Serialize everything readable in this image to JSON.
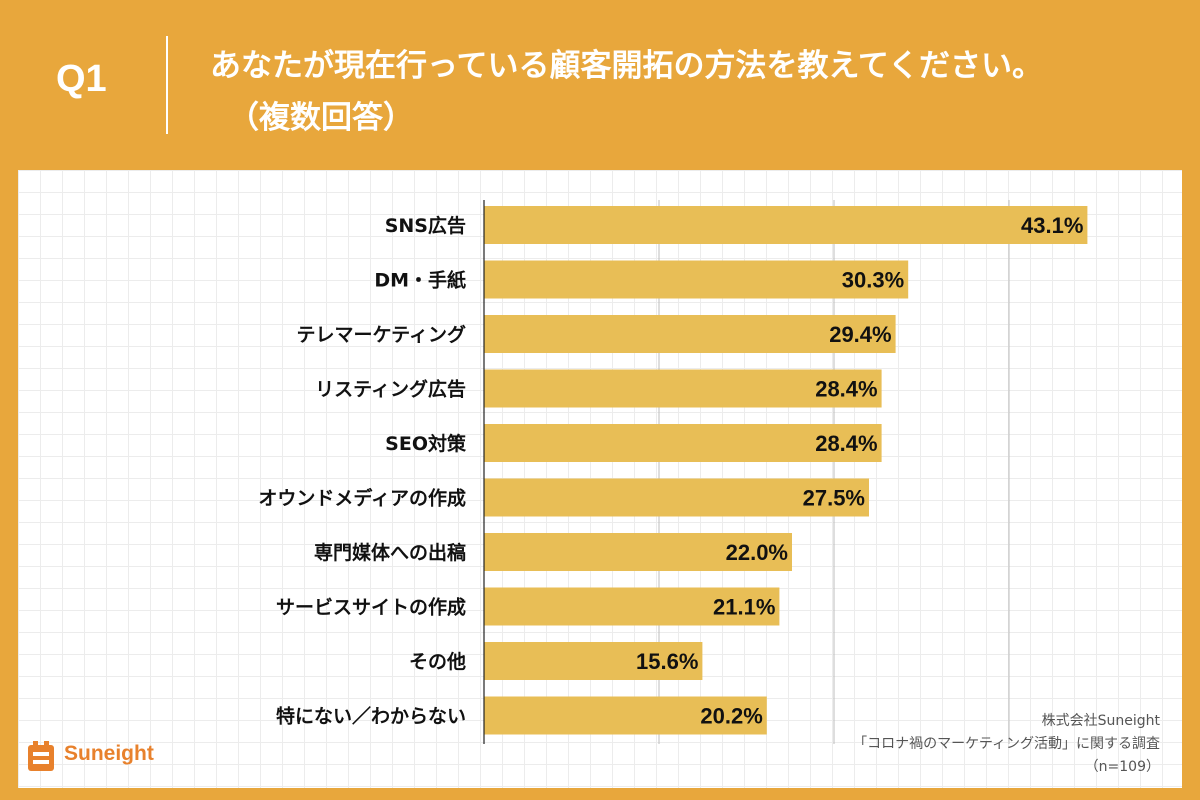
{
  "header": {
    "question_number": "Q1",
    "title_line1": "あなたが現在行っている顧客開拓の方法を教えてください。",
    "title_line2": "（複数回答）"
  },
  "colors": {
    "background": "#E8A73C",
    "bar": "#E8BE56",
    "grid": "#bdbdbd",
    "logo": "#E8812C"
  },
  "chart_data": {
    "type": "bar",
    "orientation": "horizontal",
    "title": "あなたが現在行っている顧客開拓の方法を教えてください。（複数回答）",
    "categories": [
      "SNS広告",
      "DM・手紙",
      "テレマーケティング",
      "リスティング広告",
      "SEO対策",
      "オウンドメディアの作成",
      "専門媒体への出稿",
      "サービスサイトの作成",
      "その他",
      "特にない／わからない"
    ],
    "values": [
      43.1,
      30.3,
      29.4,
      28.4,
      28.4,
      27.5,
      22.0,
      21.1,
      15.6,
      20.2
    ],
    "value_labels": [
      "43.1%",
      "30.3%",
      "29.4%",
      "28.4%",
      "28.4%",
      "27.5%",
      "22.0%",
      "21.1%",
      "15.6%",
      "20.2%"
    ],
    "xlim": [
      0,
      50
    ],
    "gridlines": [
      12.5,
      25,
      37.5
    ],
    "xlabel": "",
    "ylabel": ""
  },
  "footer": {
    "logo_text": "Suneight",
    "source_line1": "株式会社Suneight",
    "source_line2": "「コロナ禍のマーケティング活動」に関する調査",
    "source_line3": "（n=109）"
  }
}
